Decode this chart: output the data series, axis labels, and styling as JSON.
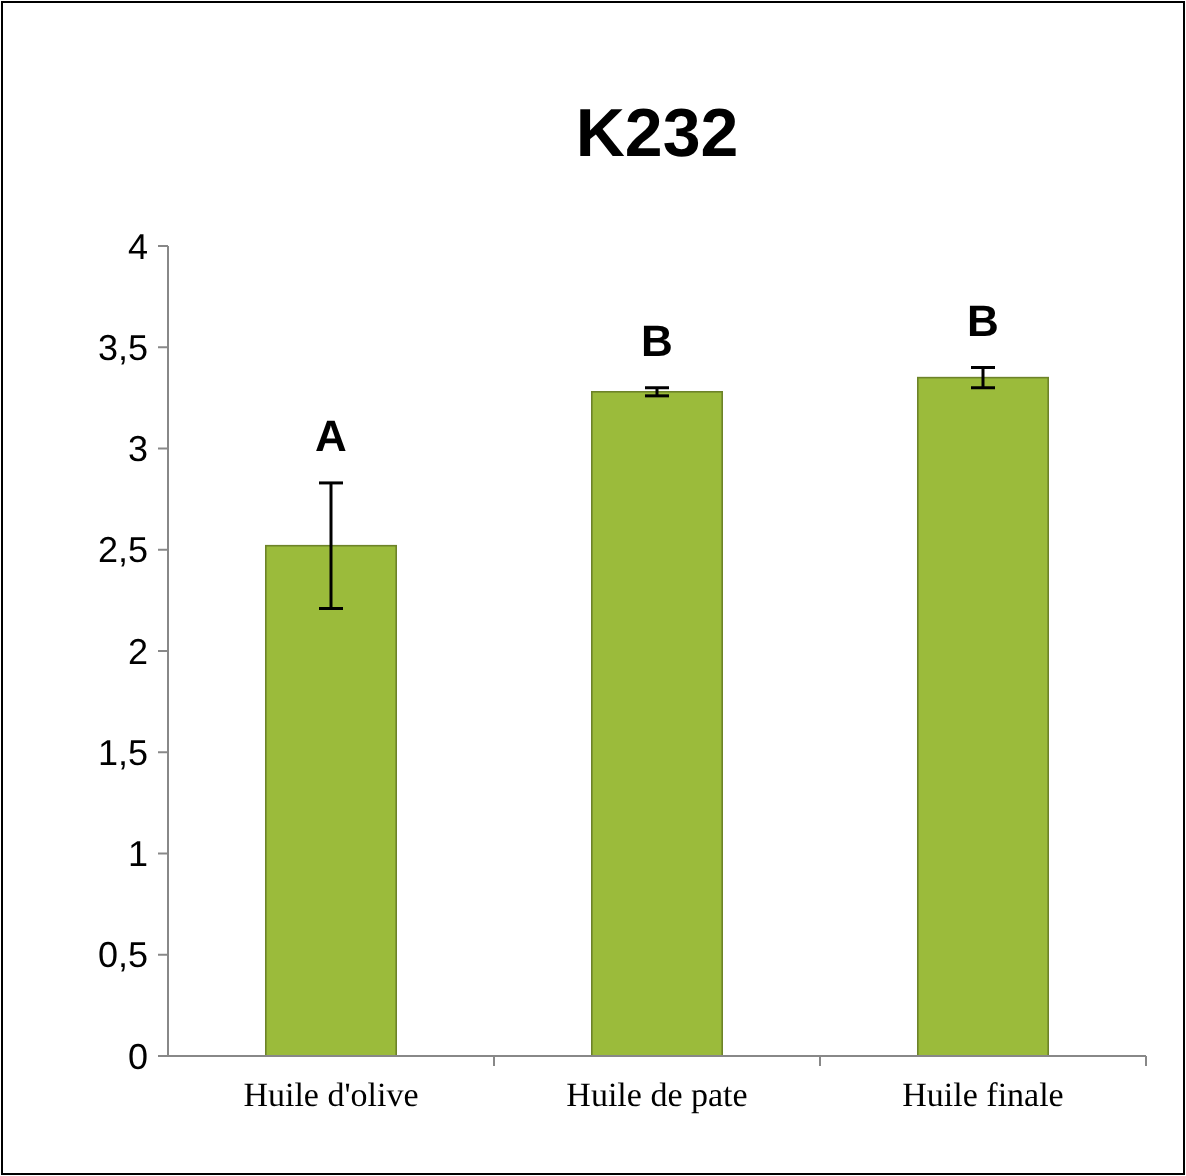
{
  "chart_data": {
    "type": "bar",
    "title": "K232",
    "categories": [
      "Huile d'olive",
      "Huile de pate",
      "Huile finale"
    ],
    "values": [
      2.52,
      3.28,
      3.35
    ],
    "errors": [
      0.31,
      0.02,
      0.05
    ],
    "color": "#9bbb3b",
    "ylim": [
      0,
      4
    ],
    "yticks": [
      0,
      {
        "value": 0.5,
        "label": "0,5"
      },
      1,
      {
        "value": 1.5,
        "label": "1,5"
      },
      2,
      {
        "value": 2.5,
        "label": "2,5"
      },
      3,
      {
        "value": 3.5,
        "label": "3,5"
      },
      4
    ],
    "grid": false,
    "annotations": [
      "A",
      "B",
      "B"
    ]
  }
}
